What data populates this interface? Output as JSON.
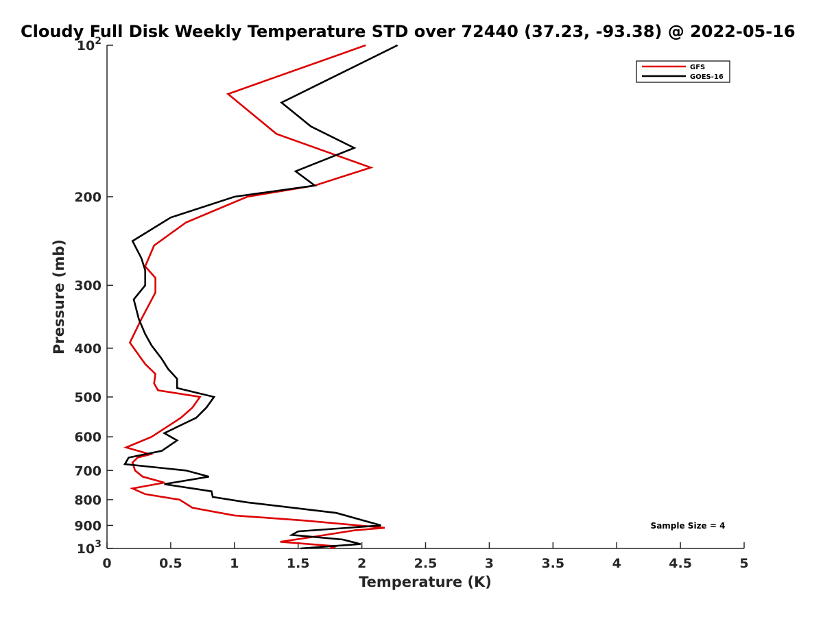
{
  "chart_data": {
    "type": "line",
    "title": "Cloudy Full Disk Weekly Temperature STD over 72440 (37.23, -93.38) @ 2022-05-16",
    "xlabel": "Temperature (K)",
    "ylabel": "Pressure (mb)",
    "xlim": [
      0,
      5
    ],
    "ylim": [
      100,
      1000
    ],
    "y_scale": "log",
    "y_reversed": true,
    "x_ticks": [
      "0",
      "0.5",
      "1",
      "1.5",
      "2",
      "2.5",
      "3",
      "3.5",
      "4",
      "4.5",
      "5"
    ],
    "y_ticks": [
      {
        "value": 100,
        "base": "10",
        "exp": "2"
      },
      {
        "value": 200,
        "label": "200"
      },
      {
        "value": 300,
        "label": "300"
      },
      {
        "value": 400,
        "label": "400"
      },
      {
        "value": 500,
        "label": "500"
      },
      {
        "value": 600,
        "label": "600"
      },
      {
        "value": 700,
        "label": "700"
      },
      {
        "value": 800,
        "label": "800"
      },
      {
        "value": 900,
        "label": "900"
      },
      {
        "value": 1000,
        "base": "10",
        "exp": "3"
      }
    ],
    "legend": {
      "position": "top-right"
    },
    "annotation": "Sample Size = 4",
    "grid": false,
    "series": [
      {
        "name": "GFS",
        "color": "#dd0000",
        "points": [
          [
            2.03,
            100
          ],
          [
            0.95,
            125
          ],
          [
            1.33,
            150
          ],
          [
            2.07,
            175
          ],
          [
            1.63,
            190
          ],
          [
            1.1,
            200
          ],
          [
            0.62,
            225
          ],
          [
            0.37,
            250
          ],
          [
            0.3,
            275
          ],
          [
            0.38,
            290
          ],
          [
            0.38,
            310
          ],
          [
            0.27,
            350
          ],
          [
            0.18,
            390
          ],
          [
            0.3,
            430
          ],
          [
            0.38,
            450
          ],
          [
            0.37,
            470
          ],
          [
            0.4,
            485
          ],
          [
            0.73,
            500
          ],
          [
            0.67,
            525
          ],
          [
            0.58,
            550
          ],
          [
            0.35,
            600
          ],
          [
            0.15,
            630
          ],
          [
            0.34,
            650
          ],
          [
            0.24,
            660
          ],
          [
            0.2,
            675
          ],
          [
            0.22,
            700
          ],
          [
            0.28,
            720
          ],
          [
            0.45,
            740
          ],
          [
            0.2,
            760
          ],
          [
            0.3,
            780
          ],
          [
            0.57,
            800
          ],
          [
            0.67,
            830
          ],
          [
            1.0,
            860
          ],
          [
            1.55,
            880
          ],
          [
            2.18,
            910
          ],
          [
            1.95,
            920
          ],
          [
            1.6,
            950
          ],
          [
            1.36,
            970
          ],
          [
            1.8,
            990
          ],
          [
            1.75,
            1000
          ]
        ]
      },
      {
        "name": "GOES-16",
        "color": "#000000",
        "points": [
          [
            2.28,
            100
          ],
          [
            1.37,
            130
          ],
          [
            1.6,
            145
          ],
          [
            1.94,
            160
          ],
          [
            1.48,
            178
          ],
          [
            1.63,
            190
          ],
          [
            1.0,
            200
          ],
          [
            0.5,
            220
          ],
          [
            0.2,
            245
          ],
          [
            0.27,
            265
          ],
          [
            0.3,
            280
          ],
          [
            0.3,
            300
          ],
          [
            0.21,
            320
          ],
          [
            0.25,
            350
          ],
          [
            0.3,
            375
          ],
          [
            0.35,
            395
          ],
          [
            0.43,
            420
          ],
          [
            0.48,
            440
          ],
          [
            0.55,
            460
          ],
          [
            0.55,
            480
          ],
          [
            0.84,
            500
          ],
          [
            0.78,
            525
          ],
          [
            0.7,
            550
          ],
          [
            0.45,
            590
          ],
          [
            0.55,
            610
          ],
          [
            0.43,
            640
          ],
          [
            0.17,
            660
          ],
          [
            0.14,
            680
          ],
          [
            0.62,
            700
          ],
          [
            0.8,
            720
          ],
          [
            0.45,
            745
          ],
          [
            0.82,
            770
          ],
          [
            0.83,
            790
          ],
          [
            1.1,
            810
          ],
          [
            1.8,
            850
          ],
          [
            2.15,
            900
          ],
          [
            1.5,
            925
          ],
          [
            1.45,
            940
          ],
          [
            1.85,
            960
          ],
          [
            1.99,
            980
          ],
          [
            1.52,
            1000
          ]
        ]
      }
    ]
  }
}
